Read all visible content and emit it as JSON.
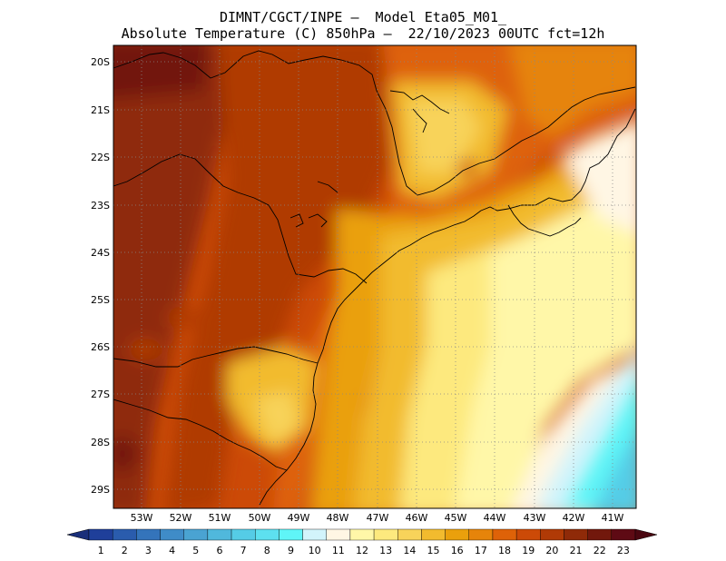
{
  "title_line1": "DIMNT/CGCT/INPE –  Model Eta05_M01_",
  "title_line2": "Absolute Temperature (C) 850hPa –  22/10/2023 00UTC fct=12h",
  "lat_labels": [
    "20S",
    "21S",
    "22S",
    "23S",
    "24S",
    "25S",
    "26S",
    "27S",
    "28S",
    "29S"
  ],
  "lon_labels": [
    "53W",
    "52W",
    "51W",
    "50W",
    "49W",
    "48W",
    "47W",
    "46W",
    "45W",
    "44W",
    "43W",
    "42W",
    "41W"
  ],
  "colorbar": {
    "labels": [
      "1",
      "2",
      "3",
      "4",
      "5",
      "6",
      "7",
      "8",
      "9",
      "10",
      "11",
      "12",
      "13",
      "14",
      "15",
      "16",
      "17",
      "18",
      "19",
      "20",
      "21",
      "22",
      "23"
    ],
    "colors": [
      "#1f3f9a",
      "#2a5cad",
      "#3474bb",
      "#3f8cc8",
      "#4aa3d2",
      "#50b8dc",
      "#55cce6",
      "#5de0ef",
      "#5ff5f7",
      "#d2f4fb",
      "#fff6e4",
      "#fff7a8",
      "#fde97e",
      "#f8d35a",
      "#f2bb2e",
      "#eaa00c",
      "#e6840a",
      "#de6208",
      "#cc4a07",
      "#b03a06",
      "#8f2a08",
      "#72180c",
      "#5e0a14"
    ],
    "left_arrow_color": "#1a2f7a",
    "right_arrow_color": "#4a0610"
  }
}
